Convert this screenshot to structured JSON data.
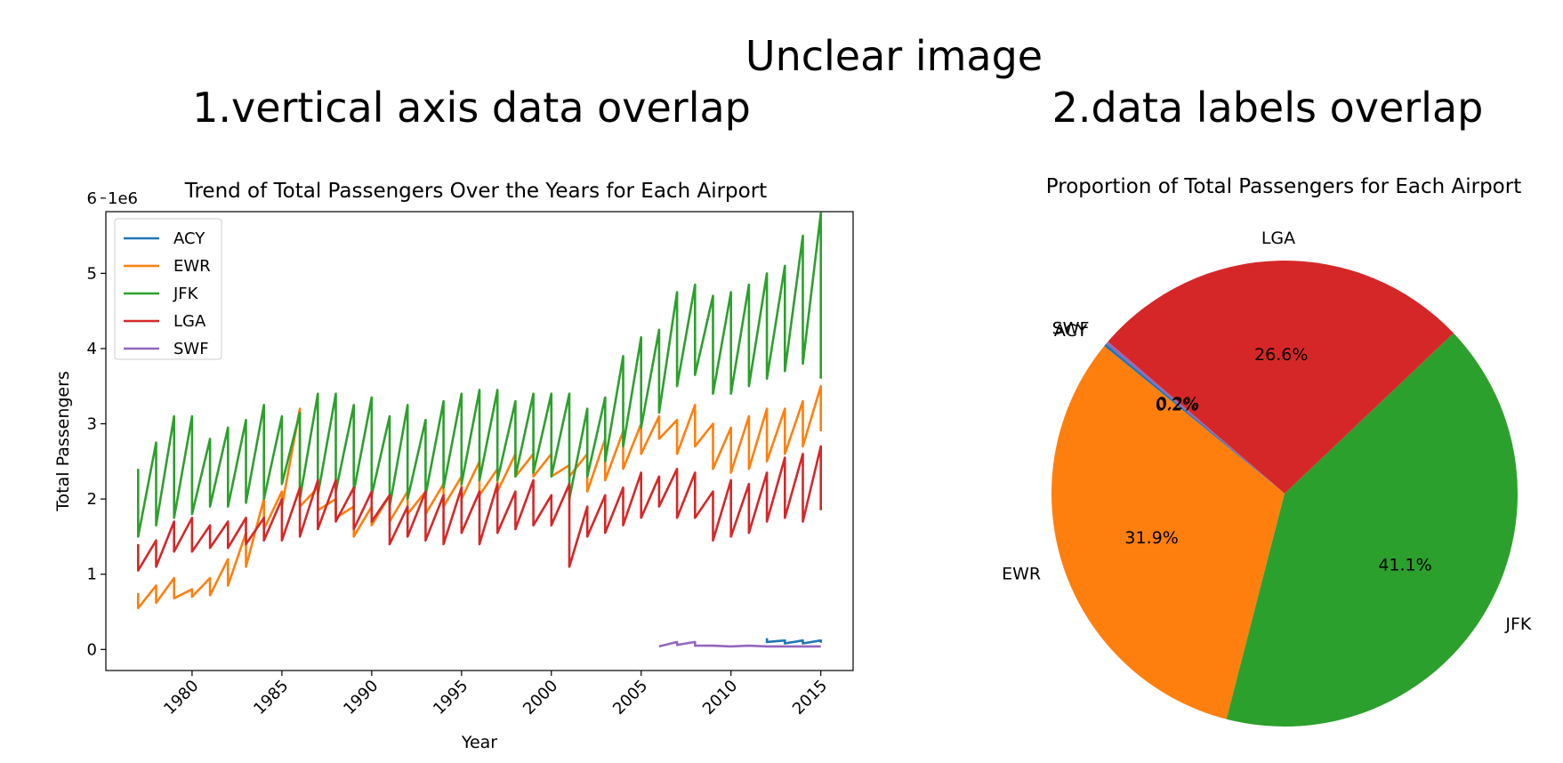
{
  "headings": {
    "main": "Unclear image",
    "left": "1.vertical axis data overlap",
    "right": "2.data labels overlap"
  },
  "chart_data": [
    {
      "type": "line",
      "title": "Trend of Total Passengers Over the Years for Each Airport",
      "xlabel": "Year",
      "ylabel": "Total Passengers",
      "y_offset_label": "1e6",
      "xlim": [
        1975.2,
        2016.8
      ],
      "ylim": [
        -0.28,
        5.82
      ],
      "x_ticks": [
        1980,
        1985,
        1990,
        1995,
        2000,
        2005,
        2010,
        2015
      ],
      "y_ticks": [
        0,
        1,
        2,
        3,
        4,
        5,
        6
      ],
      "legend": "upper-left",
      "grid": false,
      "series": [
        {
          "name": "ACY",
          "color": "#1f77b4",
          "x": [
            2012,
            2012,
            2013,
            2013,
            2014,
            2014,
            2015,
            2015
          ],
          "y": [
            0.15,
            0.1,
            0.12,
            0.08,
            0.12,
            0.08,
            0.12,
            0.09
          ]
        },
        {
          "name": "EWR",
          "color": "#ff7f0e",
          "x": [
            1977,
            1977,
            1978,
            1978,
            1979,
            1979,
            1980,
            1980,
            1981,
            1981,
            1982,
            1982,
            1983,
            1983,
            1984,
            1984,
            1985,
            1985,
            1986,
            1986,
            1987,
            1987,
            1988,
            1988,
            1989,
            1989,
            1990,
            1990,
            1991,
            1991,
            1992,
            1992,
            1993,
            1993,
            1994,
            1994,
            1995,
            1995,
            1996,
            1996,
            1997,
            1997,
            1998,
            1998,
            1999,
            1999,
            2000,
            2000,
            2001,
            2001,
            2002,
            2002,
            2003,
            2003,
            2004,
            2004,
            2005,
            2005,
            2006,
            2006,
            2007,
            2007,
            2008,
            2008,
            2009,
            2009,
            2010,
            2010,
            2011,
            2011,
            2012,
            2012,
            2013,
            2013,
            2014,
            2014,
            2015,
            2015
          ],
          "y": [
            0.75,
            0.55,
            0.85,
            0.62,
            0.95,
            0.68,
            0.8,
            0.7,
            0.95,
            0.72,
            1.2,
            0.85,
            1.55,
            1.1,
            2.0,
            1.6,
            2.1,
            1.9,
            3.2,
            1.9,
            2.15,
            1.85,
            2.0,
            1.75,
            1.9,
            1.5,
            1.9,
            1.65,
            2.05,
            1.7,
            2.1,
            1.8,
            2.1,
            1.8,
            2.2,
            1.9,
            2.3,
            2.0,
            2.5,
            2.05,
            2.4,
            2.1,
            2.6,
            2.3,
            2.6,
            2.3,
            2.6,
            2.3,
            2.45,
            2.3,
            2.6,
            2.1,
            2.8,
            2.25,
            2.9,
            2.4,
            3.0,
            2.6,
            3.1,
            2.8,
            3.05,
            2.6,
            3.25,
            2.7,
            3.0,
            2.4,
            2.95,
            2.35,
            3.1,
            2.4,
            3.2,
            2.5,
            3.2,
            2.6,
            3.3,
            2.7,
            3.5,
            2.9
          ]
        },
        {
          "name": "JFK",
          "color": "#2ca02c",
          "x": [
            1977,
            1977,
            1978,
            1978,
            1979,
            1979,
            1980,
            1980,
            1981,
            1981,
            1982,
            1982,
            1983,
            1983,
            1984,
            1984,
            1985,
            1985,
            1986,
            1986,
            1987,
            1987,
            1988,
            1988,
            1989,
            1989,
            1990,
            1990,
            1991,
            1991,
            1992,
            1992,
            1993,
            1993,
            1994,
            1994,
            1995,
            1995,
            1996,
            1996,
            1997,
            1997,
            1998,
            1998,
            1999,
            1999,
            2000,
            2000,
            2001,
            2001,
            2002,
            2002,
            2003,
            2003,
            2004,
            2004,
            2005,
            2005,
            2006,
            2006,
            2007,
            2007,
            2008,
            2008,
            2009,
            2009,
            2010,
            2010,
            2011,
            2011,
            2012,
            2012,
            2013,
            2013,
            2014,
            2014,
            2015,
            2015
          ],
          "y": [
            2.4,
            1.5,
            2.75,
            1.65,
            3.1,
            1.75,
            3.1,
            1.8,
            2.8,
            1.9,
            2.95,
            1.9,
            3.05,
            1.95,
            3.25,
            2.0,
            3.1,
            2.2,
            3.15,
            2.0,
            3.4,
            2.05,
            3.4,
            2.1,
            3.25,
            2.1,
            3.35,
            2.05,
            3.1,
            1.9,
            3.25,
            2.0,
            3.05,
            2.05,
            3.3,
            2.15,
            3.4,
            2.2,
            3.45,
            2.25,
            3.45,
            2.25,
            3.3,
            2.3,
            3.4,
            2.35,
            3.4,
            2.3,
            3.4,
            2.0,
            3.2,
            2.3,
            3.35,
            2.5,
            3.9,
            2.7,
            4.15,
            2.95,
            4.25,
            3.15,
            4.75,
            3.5,
            4.85,
            3.65,
            4.7,
            3.4,
            4.75,
            3.4,
            4.85,
            3.5,
            5.0,
            3.6,
            5.1,
            3.7,
            5.5,
            3.8,
            5.8,
            3.6
          ]
        },
        {
          "name": "LGA",
          "color": "#d62728",
          "x": [
            1977,
            1977,
            1978,
            1978,
            1979,
            1979,
            1980,
            1980,
            1981,
            1981,
            1982,
            1982,
            1983,
            1983,
            1984,
            1984,
            1985,
            1985,
            1986,
            1986,
            1987,
            1987,
            1988,
            1988,
            1989,
            1989,
            1990,
            1990,
            1991,
            1991,
            1992,
            1992,
            1993,
            1993,
            1994,
            1994,
            1995,
            1995,
            1996,
            1996,
            1997,
            1997,
            1998,
            1998,
            1999,
            1999,
            2000,
            2000,
            2001,
            2001,
            2002,
            2002,
            2003,
            2003,
            2004,
            2004,
            2005,
            2005,
            2006,
            2006,
            2007,
            2007,
            2008,
            2008,
            2009,
            2009,
            2010,
            2010,
            2011,
            2011,
            2012,
            2012,
            2013,
            2013,
            2014,
            2014,
            2015,
            2015
          ],
          "y": [
            1.4,
            1.05,
            1.45,
            1.1,
            1.7,
            1.3,
            1.75,
            1.3,
            1.65,
            1.35,
            1.7,
            1.35,
            1.75,
            1.4,
            1.75,
            1.45,
            2.0,
            1.45,
            2.15,
            1.5,
            2.25,
            1.6,
            2.25,
            1.7,
            2.15,
            1.6,
            2.1,
            1.7,
            2.05,
            1.4,
            1.9,
            1.5,
            2.1,
            1.45,
            2.05,
            1.4,
            2.15,
            1.55,
            2.1,
            1.4,
            2.2,
            1.55,
            2.1,
            1.6,
            2.25,
            1.65,
            2.05,
            1.65,
            2.2,
            1.1,
            1.9,
            1.5,
            2.05,
            1.55,
            2.15,
            1.65,
            2.35,
            1.75,
            2.3,
            1.9,
            2.4,
            1.75,
            2.35,
            1.75,
            2.1,
            1.45,
            2.25,
            1.5,
            2.2,
            1.55,
            2.35,
            1.7,
            2.55,
            1.75,
            2.6,
            1.7,
            2.7,
            1.85
          ]
        },
        {
          "name": "SWF",
          "color": "#9467bd",
          "x": [
            2006,
            2007,
            2007,
            2008,
            2008,
            2009,
            2010,
            2011,
            2012,
            2013,
            2014,
            2015
          ],
          "y": [
            0.04,
            0.1,
            0.06,
            0.1,
            0.05,
            0.05,
            0.04,
            0.05,
            0.04,
            0.04,
            0.04,
            0.04
          ]
        }
      ]
    },
    {
      "type": "pie",
      "title": "Proportion of Total Passengers for Each Airport",
      "labels": [
        "ACY",
        "EWR",
        "JFK",
        "LGA",
        "SWF"
      ],
      "values": [
        0.2,
        31.9,
        41.1,
        26.6,
        0.2
      ],
      "value_labels": [
        "0.2%",
        "31.9%",
        "41.1%",
        "26.6%",
        "0.2%"
      ],
      "colors": [
        "#1f77b4",
        "#ff7f0e",
        "#2ca02c",
        "#d62728",
        "#9467bd"
      ],
      "start_angle_deg": 140,
      "direction": "counterclockwise"
    }
  ]
}
